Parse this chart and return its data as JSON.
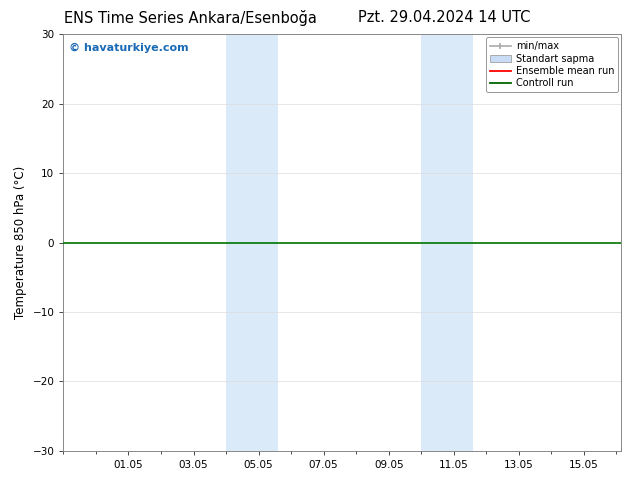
{
  "title_left": "ENS Time Series Ankara/Esenboğa",
  "title_right": "Pzt. 29.04.2024 14 UTC",
  "ylabel": "Temperature 850 hPa (°C)",
  "watermark": "© havaturkiye.com",
  "watermark_color": "#1a6ab5",
  "ylim": [
    -30,
    30
  ],
  "yticks": [
    -30,
    -20,
    -10,
    0,
    10,
    20,
    30
  ],
  "xtick_labels": [
    "01.05",
    "03.05",
    "05.05",
    "07.05",
    "09.05",
    "11.05",
    "13.05",
    "15.05"
  ],
  "xtick_positions": [
    2,
    4,
    6,
    8,
    10,
    12,
    14,
    16
  ],
  "xlim": [
    0,
    17.15
  ],
  "shaded_regions": [
    {
      "x_start": 5.0,
      "x_end": 6.6,
      "color": "#daeaf8",
      "alpha": 1.0
    },
    {
      "x_start": 11.0,
      "x_end": 12.6,
      "color": "#daeaf8",
      "alpha": 1.0
    }
  ],
  "hline_y": 0,
  "hline_color": "#007700",
  "hline_linewidth": 1.2,
  "background_color": "#ffffff",
  "grid_color": "#dddddd",
  "title_fontsize": 10.5,
  "label_fontsize": 8.5,
  "tick_fontsize": 7.5,
  "legend_fontsize": 7.0
}
